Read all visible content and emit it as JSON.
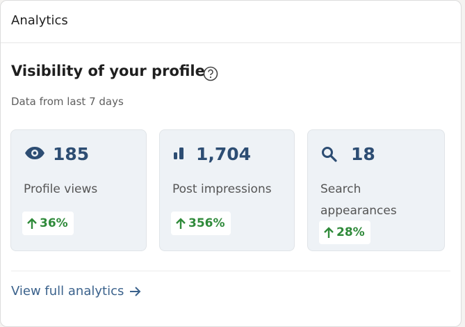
{
  "header": {
    "title": "Analytics"
  },
  "section": {
    "title": "Visibility of your profile",
    "subtitle": "Data from last 7 days"
  },
  "cards": [
    {
      "value": "185",
      "label": "Profile views",
      "change": "36%"
    },
    {
      "value": "1,704",
      "label": "Post impressions",
      "change": "356%"
    },
    {
      "value": "18",
      "label": "Search appearances",
      "change": "28%"
    }
  ],
  "footer": {
    "link": "View full analytics"
  }
}
